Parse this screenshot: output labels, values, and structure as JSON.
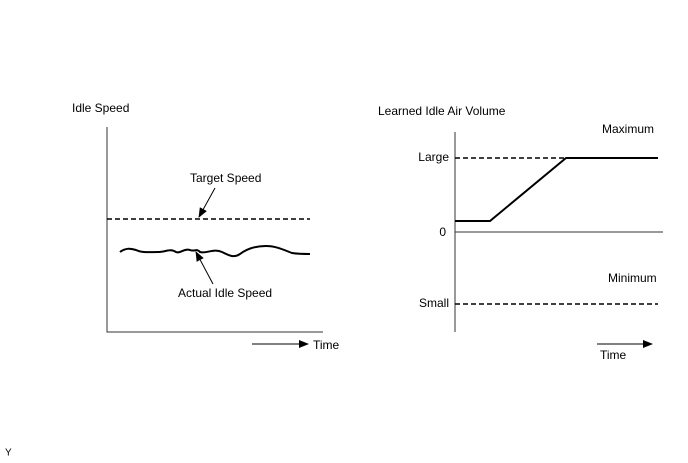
{
  "left_panel": {
    "y_axis_label": "Idle Speed",
    "target_label": "Target Speed",
    "actual_label": "Actual Idle Speed",
    "x_axis_label": "Time"
  },
  "right_panel": {
    "y_axis_label": "Learned Idle Air Volume",
    "maximum_label": "Maximum",
    "large_label": "Large",
    "zero_label": "0",
    "minimum_label": "Minimum",
    "small_label": "Small",
    "x_axis_label": "Time"
  },
  "corner_label": "Y"
}
